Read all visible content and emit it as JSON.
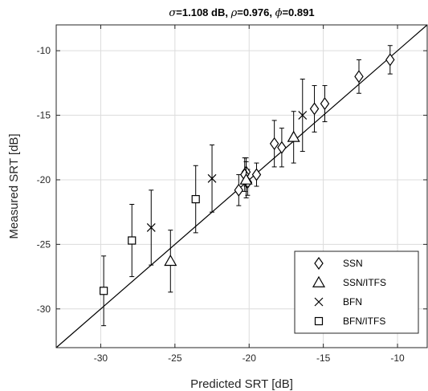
{
  "chart_data": {
    "type": "scatter",
    "title_parts": [
      {
        "text": "σ",
        "italic": true
      },
      {
        "text": "=1.108 dB, ",
        "italic": false
      },
      {
        "text": "ρ",
        "italic": true
      },
      {
        "text": "=0.976, ",
        "italic": false
      },
      {
        "text": "ϕ",
        "italic": true
      },
      {
        "text": "=0.891",
        "italic": false
      }
    ],
    "xlabel": "Predicted SRT [dB]",
    "ylabel": "Measured SRT [dB]",
    "xlim": [
      -33,
      -8
    ],
    "ylim": [
      -33,
      -8
    ],
    "xticks": [
      -30,
      -25,
      -20,
      -15,
      -10
    ],
    "yticks": [
      -30,
      -25,
      -20,
      -15,
      -10
    ],
    "xtick_labels": [
      "-30",
      "-25",
      "-20",
      "-15",
      "-10"
    ],
    "ytick_labels": [
      "-30",
      "-25",
      "-20",
      "-15",
      "-10"
    ],
    "grid": true,
    "legend_position": "bottom-right",
    "identity_line": true,
    "colors": {
      "marker": "#000000",
      "grid": "#dcdcdc",
      "axis": "#262626"
    },
    "series": [
      {
        "name": "SSN",
        "marker": "diamond",
        "points": [
          {
            "x": -10.5,
            "y": -10.7,
            "err": 1.1
          },
          {
            "x": -12.6,
            "y": -12.0,
            "err": 1.3
          },
          {
            "x": -14.9,
            "y": -14.1,
            "err": 1.4
          },
          {
            "x": -15.6,
            "y": -14.5,
            "err": 1.8
          },
          {
            "x": -17.8,
            "y": -17.5,
            "err": 1.5
          },
          {
            "x": -18.3,
            "y": -17.2,
            "err": 1.8
          },
          {
            "x": -19.5,
            "y": -19.6,
            "err": 0.9
          },
          {
            "x": -20.1,
            "y": -20.2,
            "err": 1.0
          },
          {
            "x": -20.2,
            "y": -19.4,
            "err": 1.1
          },
          {
            "x": -20.3,
            "y": -19.6,
            "err": 1.3
          },
          {
            "x": -20.7,
            "y": -20.8,
            "err": 1.2
          }
        ]
      },
      {
        "name": "SSN/ITFS",
        "marker": "triangle",
        "points": [
          {
            "x": -17.0,
            "y": -16.7,
            "err": 2.0
          },
          {
            "x": -20.2,
            "y": -20.0,
            "err": 1.4
          },
          {
            "x": -25.3,
            "y": -26.3,
            "err": 2.4
          }
        ]
      },
      {
        "name": "BFN",
        "marker": "x",
        "points": [
          {
            "x": -16.4,
            "y": -15.0,
            "err": 2.8
          },
          {
            "x": -22.5,
            "y": -19.9,
            "err": 2.6
          },
          {
            "x": -26.6,
            "y": -23.7,
            "err": 2.9
          }
        ]
      },
      {
        "name": "BFN/ITFS",
        "marker": "square",
        "points": [
          {
            "x": -23.6,
            "y": -21.5,
            "err": 2.6
          },
          {
            "x": -27.9,
            "y": -24.7,
            "err": 2.8
          },
          {
            "x": -29.8,
            "y": -28.6,
            "err": 2.7
          }
        ]
      }
    ]
  }
}
